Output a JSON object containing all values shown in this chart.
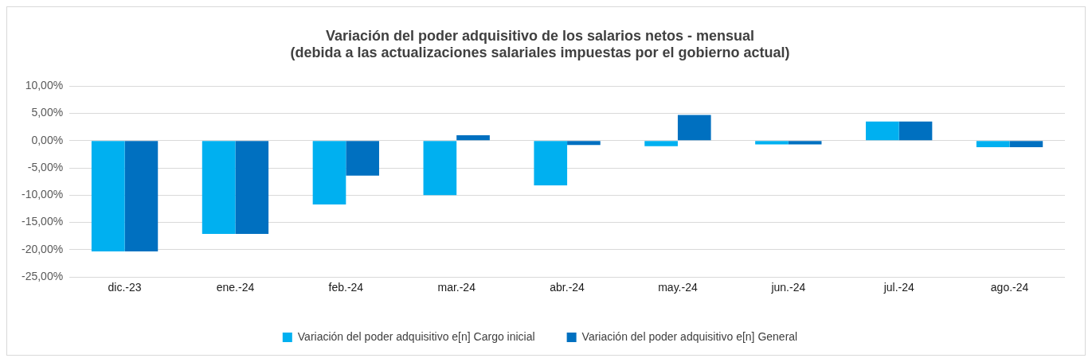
{
  "chart_data": {
    "type": "bar",
    "title": [
      "Variación del poder adquisitivo de los salarios netos - mensual",
      "(debida a las actualizaciones salariales impuestas por el gobierno actual)"
    ],
    "categories": [
      "dic.-23",
      "ene.-24",
      "feb.-24",
      "mar.-24",
      "abr.-24",
      "may.-24",
      "jun.-24",
      "jul.-24",
      "ago.-24"
    ],
    "series": [
      {
        "name": "Variación del poder adquisitivo e[n] Cargo inicial",
        "color": "#00b0f0",
        "values": [
          -20.3,
          -17.1,
          -11.7,
          -10.0,
          -8.2,
          -1.0,
          -0.7,
          3.5,
          -1.2
        ]
      },
      {
        "name": "Variación del poder adquisitivo e[n] General",
        "color": "#0070c0",
        "values": [
          -20.3,
          -17.1,
          -6.4,
          1.0,
          -0.8,
          4.7,
          -0.7,
          3.5,
          -1.2
        ]
      }
    ],
    "ylim": [
      -25,
      10
    ],
    "yticks": [
      {
        "value": 10,
        "label": "10,00%"
      },
      {
        "value": 5,
        "label": "5,00%"
      },
      {
        "value": 0,
        "label": "0,00%"
      },
      {
        "value": -5,
        "label": "-5,00%"
      },
      {
        "value": -10,
        "label": "-10,00%"
      },
      {
        "value": -15,
        "label": "-15,00%"
      },
      {
        "value": -20,
        "label": "-20,00%"
      },
      {
        "value": -25,
        "label": "-25,00%"
      }
    ],
    "grid": "y",
    "legend": "bottom"
  }
}
